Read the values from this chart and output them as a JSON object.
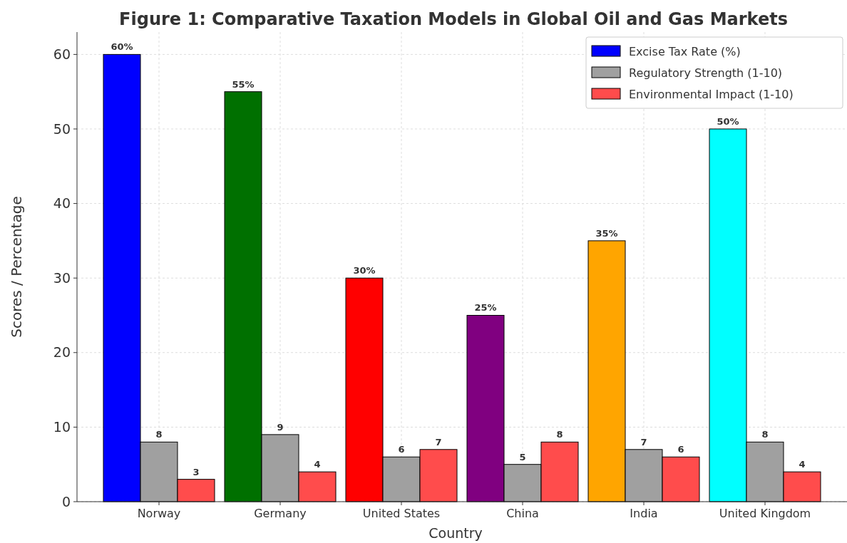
{
  "chart_data": {
    "type": "bar",
    "title": "Figure 1: Comparative Taxation Models in Global Oil and Gas Markets",
    "xlabel": "Country",
    "ylabel": "Scores / Percentage",
    "categories": [
      "Norway",
      "Germany",
      "United States",
      "China",
      "India",
      "United Kingdom"
    ],
    "series": [
      {
        "name": "Excise Tax Rate (%)",
        "color": "#0000ff",
        "colors": [
          "#0000ff",
          "#007000",
          "#ff0000",
          "#800080",
          "#ffa500",
          "#00ffff"
        ],
        "values": [
          60,
          55,
          30,
          25,
          35,
          50
        ],
        "value_labels": [
          "60%",
          "55%",
          "30%",
          "25%",
          "35%",
          "50%"
        ]
      },
      {
        "name": "Regulatory Strength (1-10)",
        "color": "#a0a0a0",
        "values": [
          8,
          9,
          6,
          5,
          7,
          8
        ],
        "value_labels": [
          "8",
          "9",
          "6",
          "5",
          "7",
          "8"
        ]
      },
      {
        "name": "Environmental Impact (1-10)",
        "color": "#ff4c4c",
        "values": [
          3,
          4,
          7,
          8,
          6,
          4
        ],
        "value_labels": [
          "3",
          "4",
          "7",
          "8",
          "6",
          "4"
        ]
      }
    ],
    "ylim": [
      0,
      63
    ],
    "yticks": [
      0,
      10,
      20,
      30,
      40,
      50,
      60
    ],
    "grid": true,
    "legend": "top right"
  }
}
